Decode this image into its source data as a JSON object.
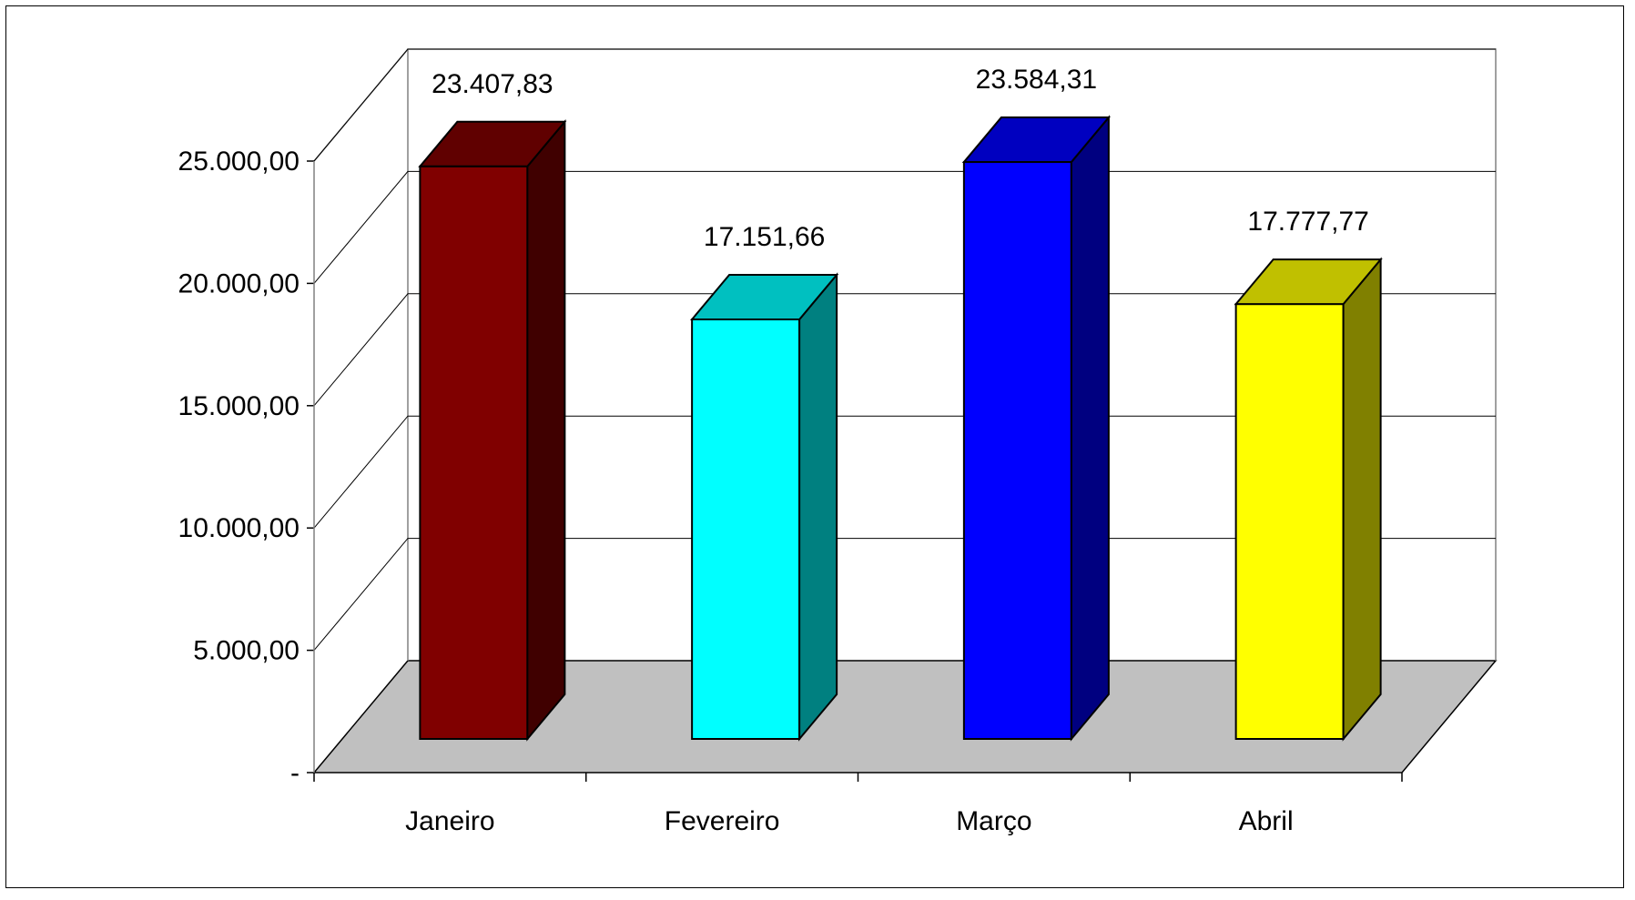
{
  "chart_data": {
    "type": "bar",
    "title": "",
    "xlabel": "",
    "ylabel": "",
    "categories": [
      "Janeiro",
      "Fevereiro",
      "Março",
      "Abril"
    ],
    "values": [
      23407.83,
      17151.66,
      23584.31,
      17777.77
    ],
    "value_labels": [
      "23.407,83",
      "17.151,66",
      "23.584,31",
      "17.777,77"
    ],
    "ylim": [
      0,
      25000
    ],
    "y_ticks": [
      0,
      5000,
      10000,
      15000,
      20000,
      25000
    ],
    "y_tick_labels": [
      "-",
      "5.000,00",
      "10.000,00",
      "15.000,00",
      "20.000,00",
      "25.000,00"
    ],
    "grid": true,
    "legend": "none",
    "style": "3d-column",
    "colors": [
      {
        "front": "#800000",
        "top": "#600000",
        "side": "#400000"
      },
      {
        "front": "#00ffff",
        "top": "#00c0c0",
        "side": "#008080"
      },
      {
        "front": "#0000ff",
        "top": "#0000c0",
        "side": "#000080"
      },
      {
        "front": "#ffff00",
        "top": "#c0c000",
        "side": "#808000"
      }
    ],
    "floor_color": "#c0c0c0",
    "gridline_color": "#000000"
  }
}
